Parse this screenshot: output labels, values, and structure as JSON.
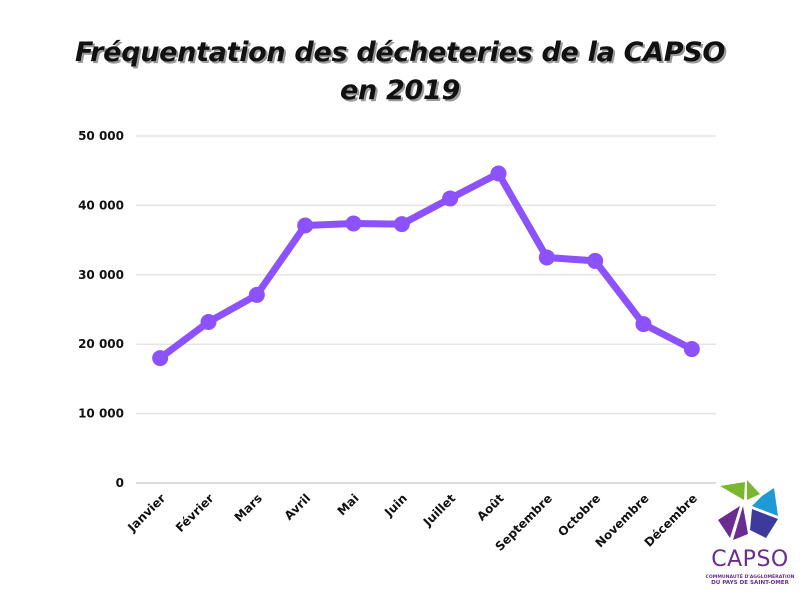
{
  "chart_data": {
    "type": "line",
    "title": "Fréquentation des décheteries de la CAPSO en 2019",
    "title_lines": [
      "Fréquentation des décheteries de la CAPSO",
      "en 2019"
    ],
    "xlabel": "",
    "ylabel": "",
    "categories": [
      "Janvier",
      "Février",
      "Mars",
      "Avril",
      "Mai",
      "Juin",
      "Juillet",
      "Août",
      "Septembre",
      "Octobre",
      "Novembre",
      "Décembre"
    ],
    "series": [
      {
        "name": "Fréquentation",
        "values": [
          18000,
          23200,
          27100,
          37100,
          37400,
          37300,
          41000,
          44600,
          32500,
          32000,
          22900,
          19300
        ],
        "color": "#8c52ff"
      }
    ],
    "ylim": [
      0,
      50000
    ],
    "yticks": [
      0,
      10000,
      20000,
      30000,
      40000,
      50000
    ],
    "ytick_labels": [
      "0",
      "10 000",
      "20 000",
      "30 000",
      "40 000",
      "50 000"
    ],
    "grid": true,
    "legend": "none"
  },
  "logo": {
    "name": "CAPSO",
    "subtitle_line1": "COMMUNAUTÉ D'AGGLOMÉRATION",
    "subtitle_line2": "DU PAYS DE SAINT-OMER",
    "colors": {
      "green": "#7ab730",
      "blue": "#1e9bd7",
      "indigo": "#3d3a9c",
      "purple": "#6a2c91"
    }
  }
}
